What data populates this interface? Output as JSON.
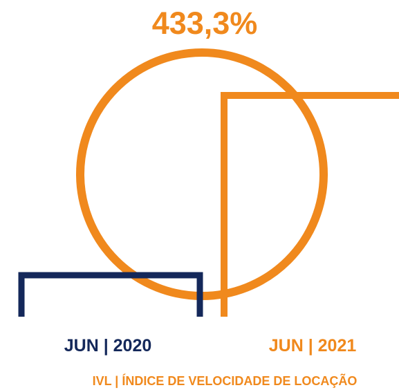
{
  "chart_data": {
    "type": "bar",
    "title": "433,3%",
    "categories": [
      "JUN | 2020",
      "JUN | 2021"
    ],
    "caption": "IVL | ÍNDICE DE VELOCIDADE DE LOCAÇÃO",
    "change_pct": 433.3,
    "series": [
      {
        "values": [
          1,
          5.333
        ],
        "colors": [
          "#14285a",
          "#f0891d"
        ]
      }
    ]
  },
  "colors": {
    "accent": "#f0891d",
    "navy": "#14285a"
  }
}
